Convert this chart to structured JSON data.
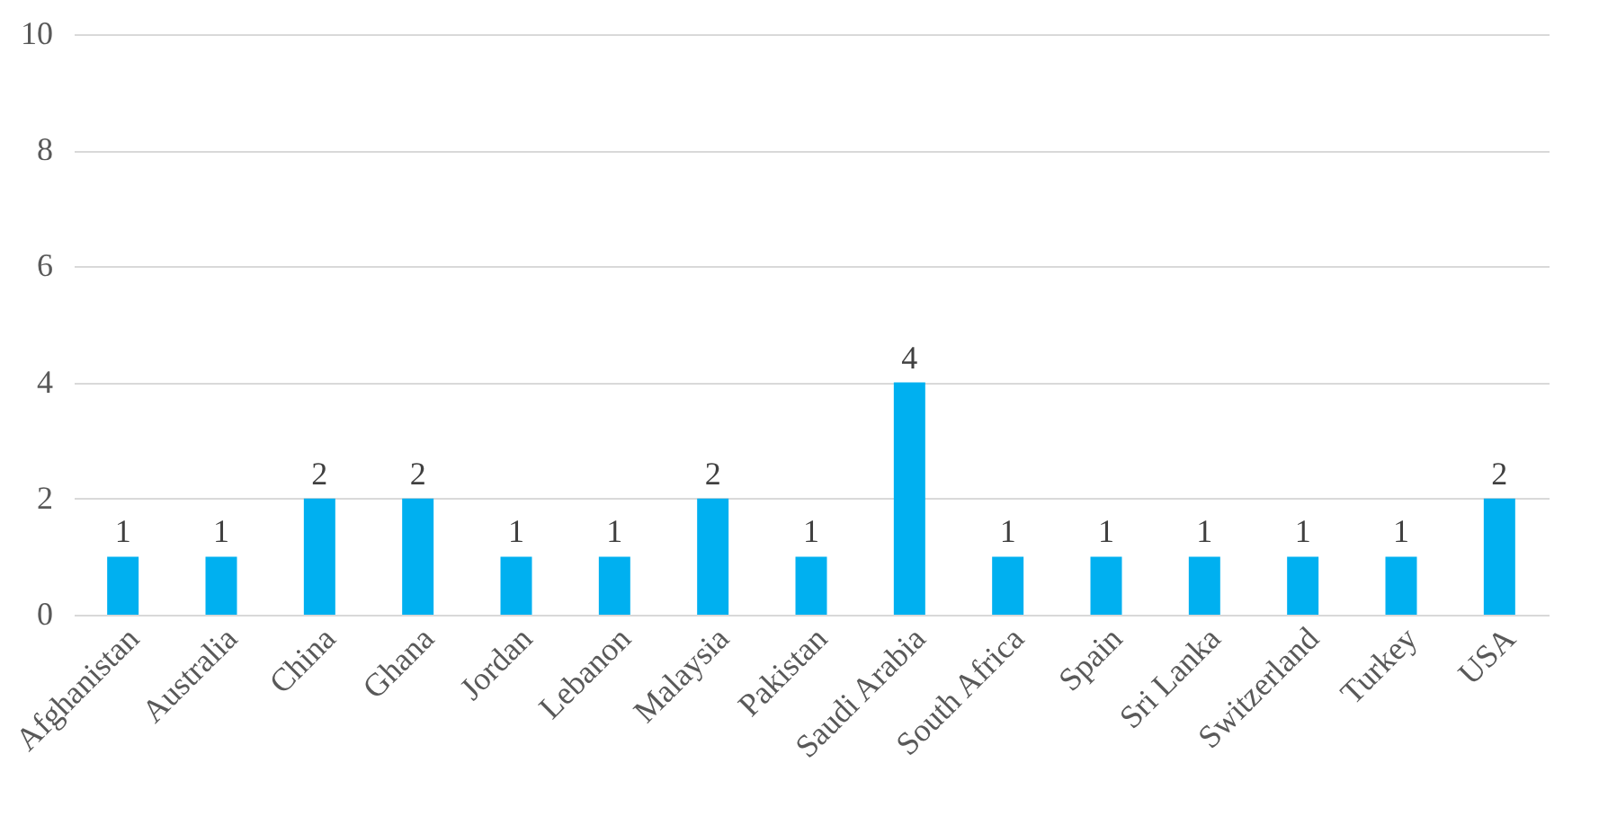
{
  "chart_data": {
    "type": "bar",
    "categories": [
      "Afghanistan",
      "Australia",
      "China",
      "Ghana",
      "Jordan",
      "Lebanon",
      "Malaysia",
      "Pakistan",
      "Saudi Arabia",
      "South Africa",
      "Spain",
      "Sri Lanka",
      "Switzerland",
      "Turkey",
      "USA"
    ],
    "values": [
      1,
      1,
      2,
      2,
      1,
      1,
      2,
      1,
      4,
      1,
      1,
      1,
      1,
      1,
      2
    ],
    "color": "#00b0f0",
    "ylim": [
      0,
      10
    ],
    "yticks": [
      0,
      2,
      4,
      6,
      8,
      10
    ],
    "grid": "y",
    "data_labels": true
  }
}
